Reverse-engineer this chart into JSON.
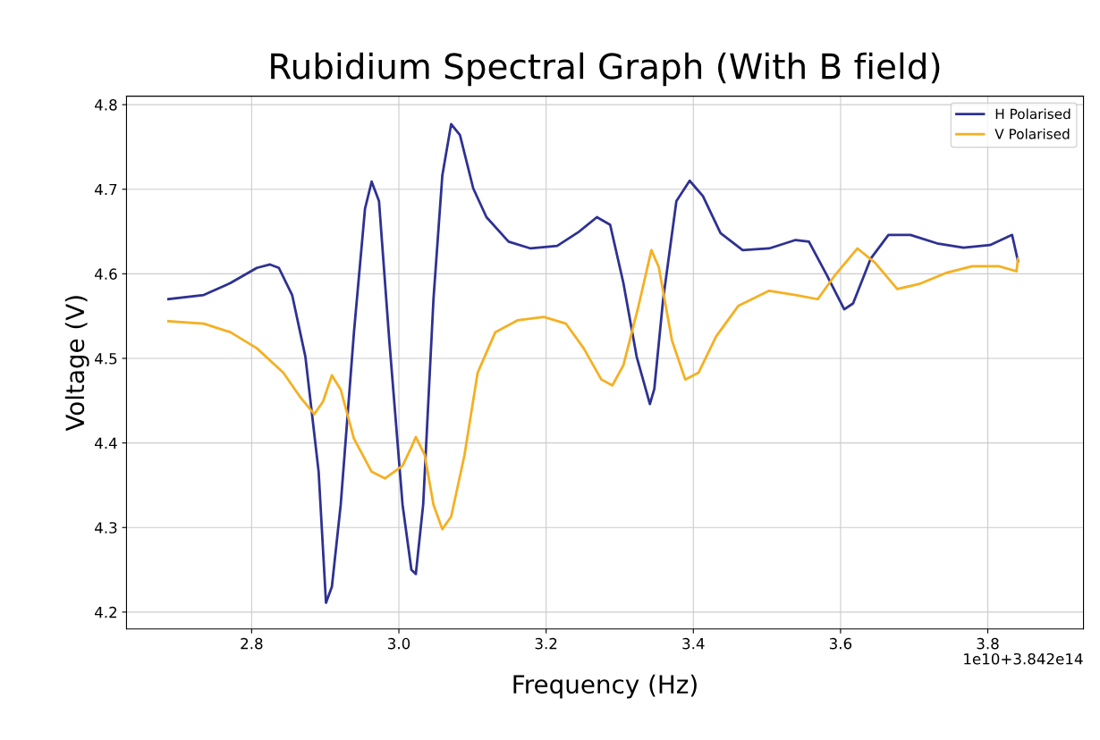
{
  "chart_data": {
    "type": "line",
    "title": "Rubidium Spectral Graph (With B field)",
    "xlabel": "Frequency (Hz)",
    "ylabel": "Voltage (V)",
    "annotations": [
      "1e10+3.842e14"
    ],
    "xlim": [
      2.63,
      3.93
    ],
    "ylim": [
      4.18,
      4.81
    ],
    "xticks": [
      2.8,
      {
        "value": 3,
        "label": "3.0"
      },
      3.2,
      3.4,
      3.6,
      3.8
    ],
    "yticks": [
      4.2,
      4.3,
      4.4,
      4.5,
      4.6,
      4.7,
      4.8
    ],
    "grid": true,
    "legend": "top right",
    "marker": "none",
    "line_style": "solid",
    "series": [
      {
        "name": "H Polarised",
        "color": "#2e3192",
        "x": [
          2.687,
          2.735,
          2.771,
          2.807,
          2.825,
          2.837,
          2.855,
          2.873,
          2.891,
          2.901,
          2.909,
          2.921,
          2.939,
          2.954,
          2.963,
          2.973,
          2.987,
          3.005,
          3.017,
          3.023,
          3.033,
          3.047,
          3.059,
          3.071,
          3.083,
          3.101,
          3.119,
          3.149,
          3.179,
          3.215,
          3.245,
          3.269,
          3.287,
          3.305,
          3.323,
          3.341,
          3.347,
          3.359,
          3.377,
          3.395,
          3.413,
          3.437,
          3.467,
          3.503,
          3.539,
          3.557,
          3.581,
          3.605,
          3.617,
          3.641,
          3.665,
          3.695,
          3.731,
          3.767,
          3.803,
          3.833,
          3.841
        ],
        "values": [
          4.57,
          4.575,
          4.589,
          4.607,
          4.611,
          4.607,
          4.575,
          4.502,
          4.366,
          4.211,
          4.23,
          4.327,
          4.531,
          4.677,
          4.709,
          4.686,
          4.521,
          4.327,
          4.25,
          4.245,
          4.327,
          4.57,
          4.716,
          4.777,
          4.764,
          4.701,
          4.667,
          4.638,
          4.63,
          4.633,
          4.65,
          4.667,
          4.658,
          4.589,
          4.502,
          4.446,
          4.464,
          4.57,
          4.686,
          4.71,
          4.692,
          4.648,
          4.628,
          4.63,
          4.64,
          4.638,
          4.599,
          4.558,
          4.565,
          4.618,
          4.646,
          4.646,
          4.636,
          4.631,
          4.634,
          4.646,
          4.615
        ]
      },
      {
        "name": "V Polarised",
        "color": "#f5b021",
        "x": [
          2.687,
          2.735,
          2.771,
          2.807,
          2.843,
          2.867,
          2.885,
          2.897,
          2.909,
          2.921,
          2.939,
          2.963,
          2.981,
          3.005,
          3.017,
          3.023,
          3.035,
          3.047,
          3.059,
          3.071,
          3.089,
          3.107,
          3.131,
          3.161,
          3.197,
          3.227,
          3.251,
          3.275,
          3.29,
          3.305,
          3.325,
          3.343,
          3.353,
          3.371,
          3.389,
          3.407,
          3.431,
          3.461,
          3.503,
          3.539,
          3.569,
          3.593,
          3.623,
          3.647,
          3.677,
          3.707,
          3.743,
          3.779,
          3.815,
          3.839,
          3.841
        ],
        "values": [
          4.544,
          4.541,
          4.531,
          4.512,
          4.483,
          4.453,
          4.434,
          4.449,
          4.48,
          4.463,
          4.405,
          4.366,
          4.358,
          4.373,
          4.395,
          4.407,
          4.386,
          4.327,
          4.298,
          4.313,
          4.385,
          4.483,
          4.531,
          4.545,
          4.549,
          4.541,
          4.512,
          4.475,
          4.468,
          4.492,
          4.56,
          4.628,
          4.608,
          4.521,
          4.475,
          4.483,
          4.526,
          4.562,
          4.58,
          4.575,
          4.57,
          4.599,
          4.63,
          4.613,
          4.582,
          4.588,
          4.601,
          4.609,
          4.609,
          4.603,
          4.618
        ]
      }
    ]
  }
}
